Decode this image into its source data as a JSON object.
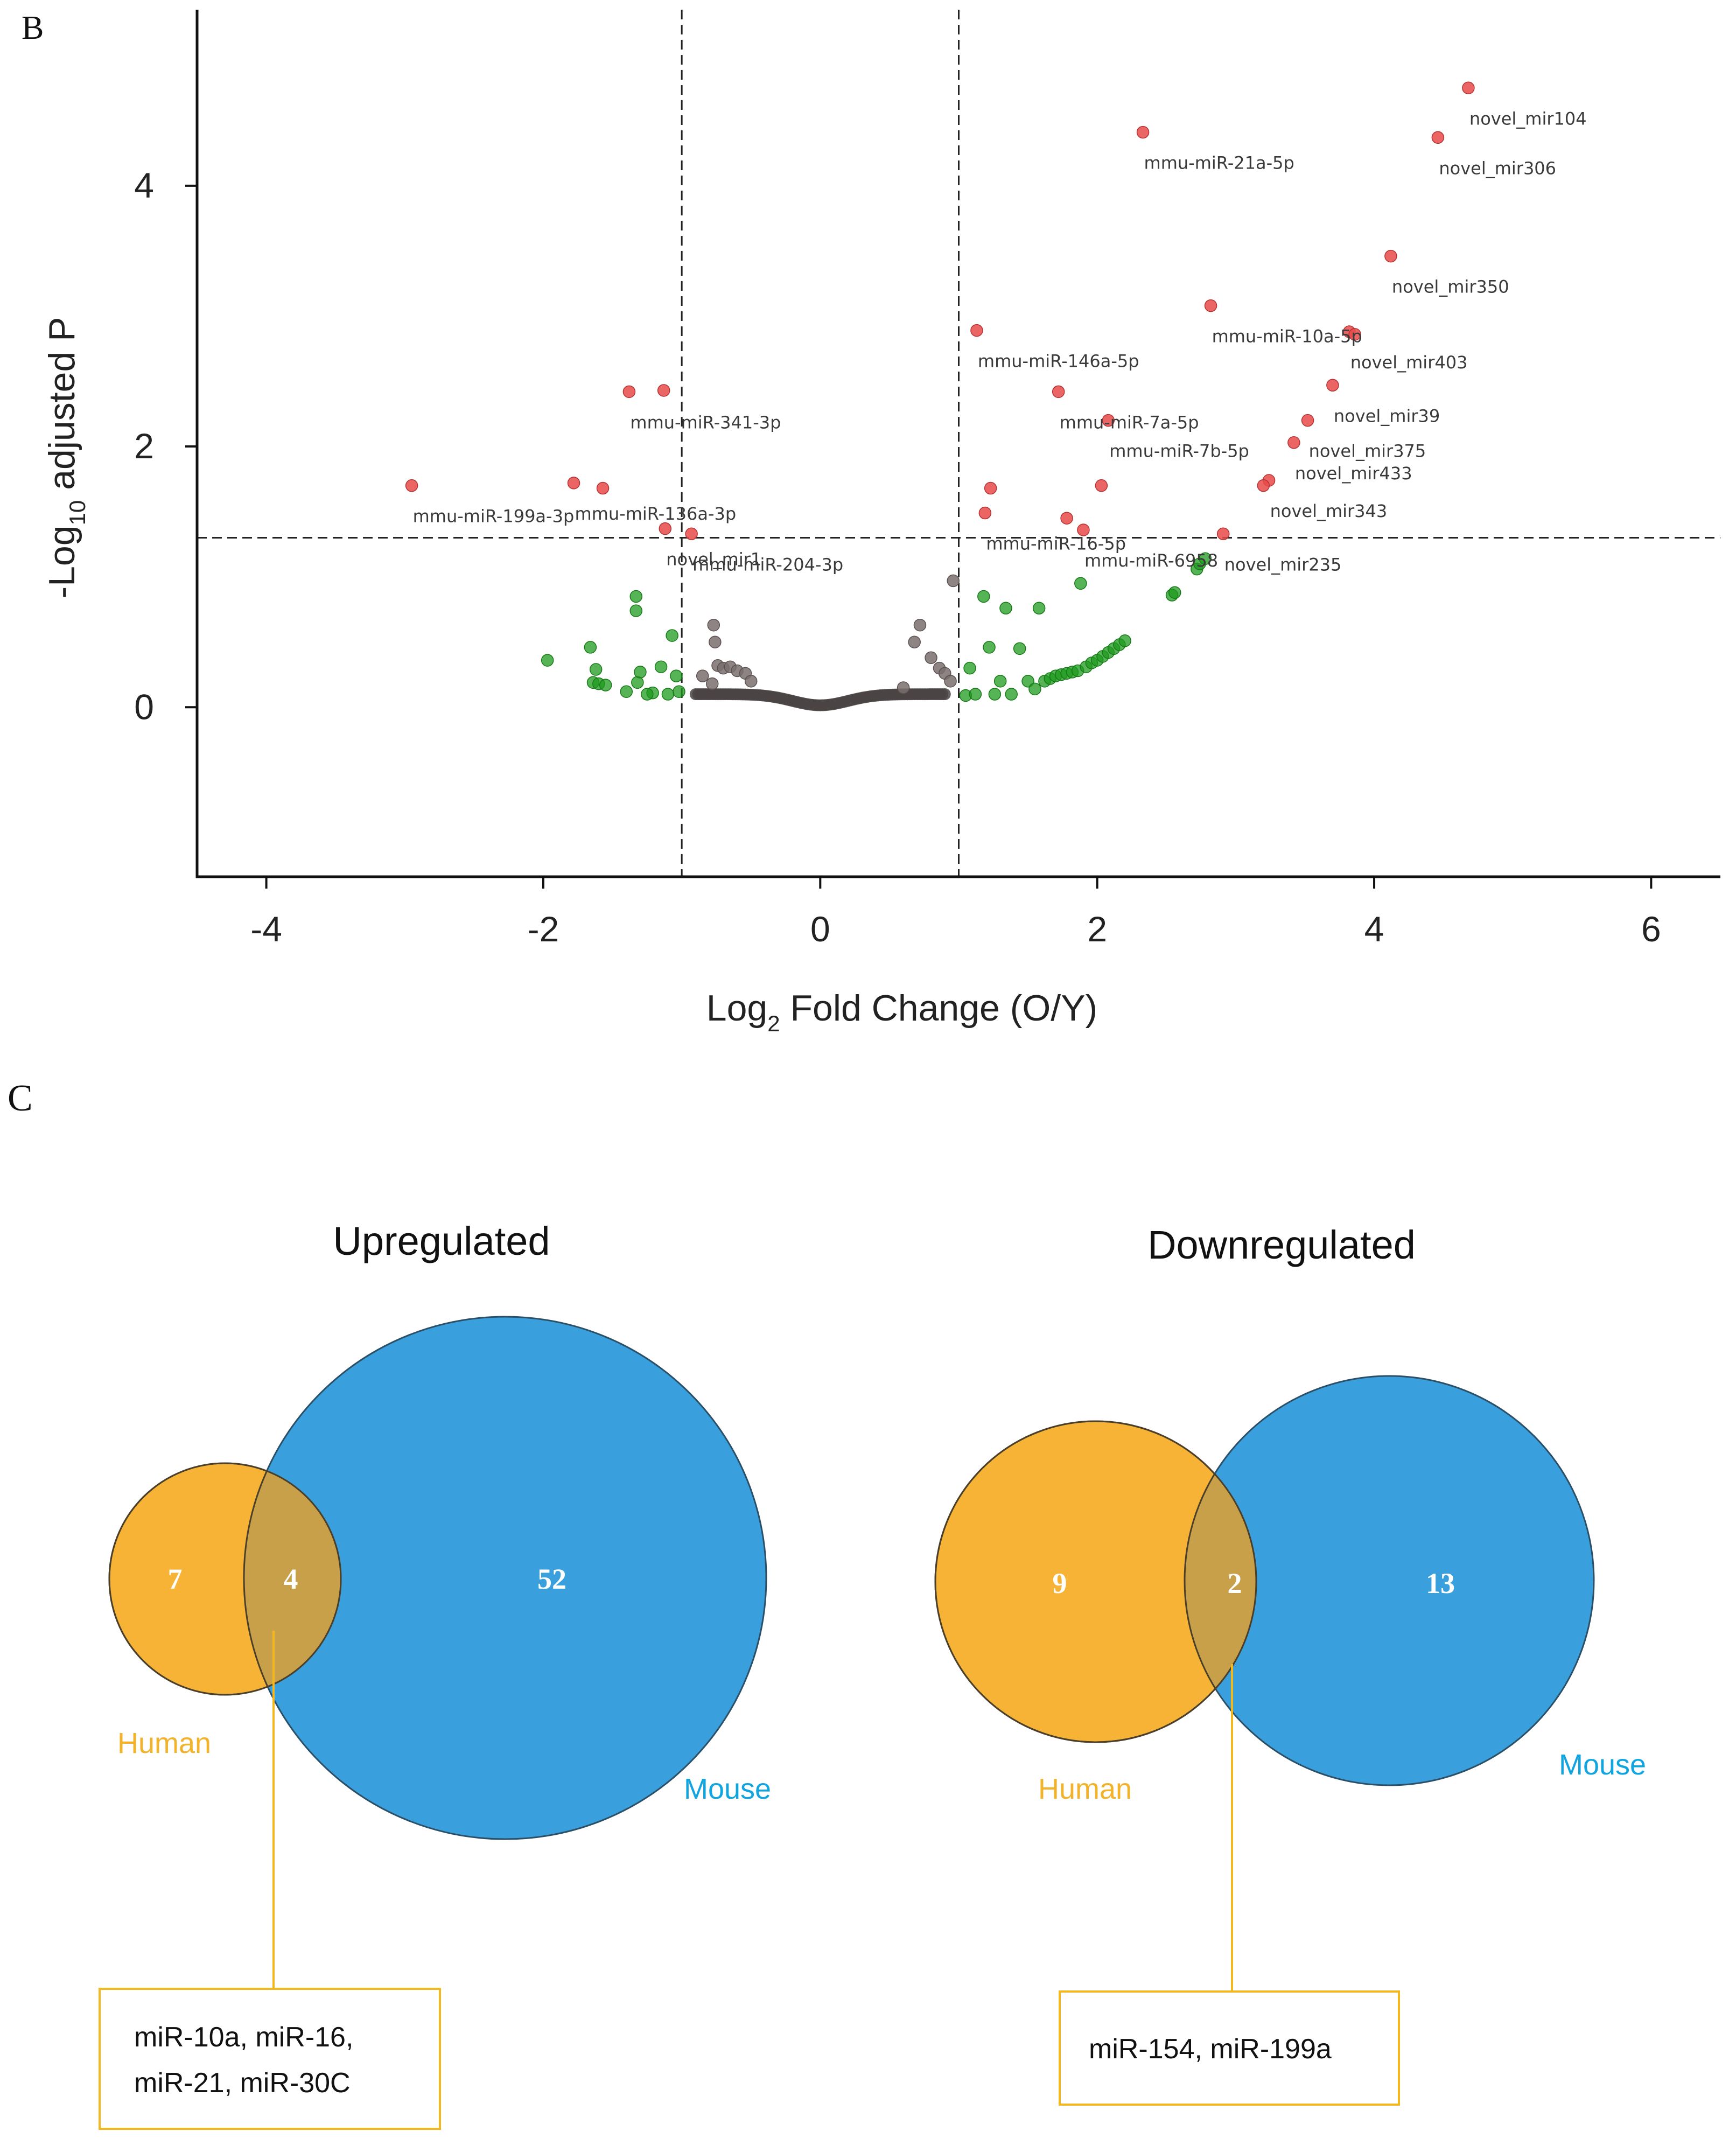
{
  "panel_b": {
    "letter": "B"
  },
  "panel_c": {
    "letter": "C"
  },
  "colors": {
    "significant": "#e84a4a",
    "fold_only": "#1e9a1e",
    "not_significant": "#4a4444",
    "human": "#f7b335",
    "mouse": "#3aa0dd",
    "overlap": "#c9a04a",
    "human_label": "#f2b32b",
    "mouse_label": "#11a5e0",
    "callout_border": "#f3b81f"
  },
  "chart_data": [
    {
      "type": "scatter",
      "subtype": "volcano",
      "xlabel": "Log",
      "xlabel_sub": "2",
      "xlabel_tail": " Fold Change (O/Y)",
      "ylabel_pre": "-Log",
      "ylabel_sub": "10",
      "ylabel_tail": " adjusted P",
      "xlim": [
        -4.5,
        6.5
      ],
      "ylim": [
        -1.3,
        5.35
      ],
      "x_ticks": [
        -4,
        -2,
        0,
        2,
        4,
        6
      ],
      "y_ticks": [
        0,
        2,
        4
      ],
      "thresholds": {
        "x": [
          -1,
          1
        ],
        "y": 1.3
      },
      "significant": [
        {
          "x": 4.68,
          "y": 4.75,
          "label": "novel_mir104"
        },
        {
          "x": 4.46,
          "y": 4.37,
          "label": "novel_mir306"
        },
        {
          "x": 2.33,
          "y": 4.41,
          "label": "mmu-miR-21a-5p"
        },
        {
          "x": 4.12,
          "y": 3.46,
          "label": "novel_mir350"
        },
        {
          "x": 2.82,
          "y": 3.08,
          "label": "mmu-miR-10a-5p"
        },
        {
          "x": 3.82,
          "y": 2.88,
          "label": "novel_mir403"
        },
        {
          "x": 3.86,
          "y": 2.86,
          "label": ""
        },
        {
          "x": 1.13,
          "y": 2.89,
          "label": "mmu-miR-146a-5p"
        },
        {
          "x": 3.7,
          "y": 2.47,
          "label": "novel_mir39"
        },
        {
          "x": 1.72,
          "y": 2.42,
          "label": "mmu-miR-7a-5p"
        },
        {
          "x": 2.08,
          "y": 2.2,
          "label": "mmu-miR-7b-5p"
        },
        {
          "x": 3.52,
          "y": 2.2,
          "label": "novel_mir375"
        },
        {
          "x": 3.42,
          "y": 2.03,
          "label": "novel_mir433"
        },
        {
          "x": -1.38,
          "y": 2.42,
          "label": "mmu-miR-341-3p"
        },
        {
          "x": -1.13,
          "y": 2.43,
          "label": ""
        },
        {
          "x": -2.95,
          "y": 1.7,
          "label": "mmu-miR-199a-3p"
        },
        {
          "x": -1.78,
          "y": 1.72,
          "label": "mmu-miR-136a-3p"
        },
        {
          "x": -1.57,
          "y": 1.68,
          "label": ""
        },
        {
          "x": -1.12,
          "y": 1.37,
          "label": "novel_mir1"
        },
        {
          "x": -0.93,
          "y": 1.33,
          "label": "mmu-miR-204-3p"
        },
        {
          "x": 1.23,
          "y": 1.68,
          "label": ""
        },
        {
          "x": 1.19,
          "y": 1.49,
          "label": "mmu-miR-16-5p"
        },
        {
          "x": 2.03,
          "y": 1.7,
          "label": ""
        },
        {
          "x": 1.78,
          "y": 1.45,
          "label": ""
        },
        {
          "x": 1.9,
          "y": 1.36,
          "label": "mmu-miR-6958"
        },
        {
          "x": 3.24,
          "y": 1.74,
          "label": "novel_mir343"
        },
        {
          "x": 3.2,
          "y": 1.7,
          "label": ""
        },
        {
          "x": 2.91,
          "y": 1.33,
          "label": "novel_mir235"
        }
      ],
      "fold_only": [
        {
          "x": -1.97,
          "y": 0.36
        },
        {
          "x": -1.66,
          "y": 0.46
        },
        {
          "x": -1.62,
          "y": 0.29
        },
        {
          "x": -1.64,
          "y": 0.19
        },
        {
          "x": -1.6,
          "y": 0.18
        },
        {
          "x": -1.55,
          "y": 0.17
        },
        {
          "x": -1.4,
          "y": 0.12
        },
        {
          "x": -1.33,
          "y": 0.85
        },
        {
          "x": -1.33,
          "y": 0.74
        },
        {
          "x": -1.32,
          "y": 0.19
        },
        {
          "x": -1.3,
          "y": 0.27
        },
        {
          "x": -1.21,
          "y": 0.11
        },
        {
          "x": -1.15,
          "y": 0.31
        },
        {
          "x": -1.1,
          "y": 0.1
        },
        {
          "x": -1.07,
          "y": 0.55
        },
        {
          "x": -1.04,
          "y": 0.24
        },
        {
          "x": -1.02,
          "y": 0.12
        },
        {
          "x": -1.25,
          "y": 0.1
        },
        {
          "x": 1.05,
          "y": 0.09
        },
        {
          "x": 1.08,
          "y": 0.3
        },
        {
          "x": 1.12,
          "y": 0.1
        },
        {
          "x": 1.18,
          "y": 0.85
        },
        {
          "x": 1.22,
          "y": 0.46
        },
        {
          "x": 1.26,
          "y": 0.1
        },
        {
          "x": 1.3,
          "y": 0.2
        },
        {
          "x": 1.34,
          "y": 0.76
        },
        {
          "x": 1.38,
          "y": 0.1
        },
        {
          "x": 1.44,
          "y": 0.45
        },
        {
          "x": 1.5,
          "y": 0.2
        },
        {
          "x": 1.55,
          "y": 0.14
        },
        {
          "x": 1.58,
          "y": 0.76
        },
        {
          "x": 1.62,
          "y": 0.2
        },
        {
          "x": 1.66,
          "y": 0.22
        },
        {
          "x": 1.7,
          "y": 0.24
        },
        {
          "x": 1.74,
          "y": 0.25
        },
        {
          "x": 1.78,
          "y": 0.26
        },
        {
          "x": 1.82,
          "y": 0.27
        },
        {
          "x": 1.86,
          "y": 0.28
        },
        {
          "x": 1.88,
          "y": 0.95
        },
        {
          "x": 1.92,
          "y": 0.31
        },
        {
          "x": 1.96,
          "y": 0.34
        },
        {
          "x": 2.0,
          "y": 0.36
        },
        {
          "x": 2.04,
          "y": 0.39
        },
        {
          "x": 2.08,
          "y": 0.42
        },
        {
          "x": 2.12,
          "y": 0.45
        },
        {
          "x": 2.16,
          "y": 0.48
        },
        {
          "x": 2.2,
          "y": 0.51
        },
        {
          "x": 2.54,
          "y": 0.86
        },
        {
          "x": 2.56,
          "y": 0.88
        },
        {
          "x": 2.72,
          "y": 1.06
        },
        {
          "x": 2.74,
          "y": 1.1
        },
        {
          "x": 2.78,
          "y": 1.14
        }
      ],
      "not_significant_band": {
        "x_from": -0.9,
        "x_to": 0.9
      },
      "not_significant_extra": [
        {
          "x": -0.77,
          "y": 0.63
        },
        {
          "x": -0.76,
          "y": 0.5
        },
        {
          "x": -0.74,
          "y": 0.32
        },
        {
          "x": -0.7,
          "y": 0.3
        },
        {
          "x": -0.65,
          "y": 0.31
        },
        {
          "x": -0.6,
          "y": 0.28
        },
        {
          "x": -0.54,
          "y": 0.26
        },
        {
          "x": -0.5,
          "y": 0.2
        },
        {
          "x": -0.78,
          "y": 0.18
        },
        {
          "x": -0.85,
          "y": 0.24
        },
        {
          "x": 0.68,
          "y": 0.5
        },
        {
          "x": 0.72,
          "y": 0.63
        },
        {
          "x": 0.8,
          "y": 0.38
        },
        {
          "x": 0.86,
          "y": 0.3
        },
        {
          "x": 0.9,
          "y": 0.26
        },
        {
          "x": 0.96,
          "y": 0.97
        },
        {
          "x": 0.6,
          "y": 0.15
        },
        {
          "x": 0.94,
          "y": 0.2
        }
      ]
    },
    {
      "type": "venn",
      "title": "Upregulated",
      "sets": [
        {
          "name": "Human",
          "only": "7"
        },
        {
          "name": "Mouse",
          "only": "52"
        }
      ],
      "overlap": "4",
      "callout": [
        "miR-10a, miR-16,",
        "miR-21, miR-30C"
      ]
    },
    {
      "type": "venn",
      "title": "Downregulated",
      "sets": [
        {
          "name": "Human",
          "only": "9"
        },
        {
          "name": "Mouse",
          "only": "13"
        }
      ],
      "overlap": "2",
      "callout": [
        "miR-154, miR-199a"
      ]
    }
  ]
}
